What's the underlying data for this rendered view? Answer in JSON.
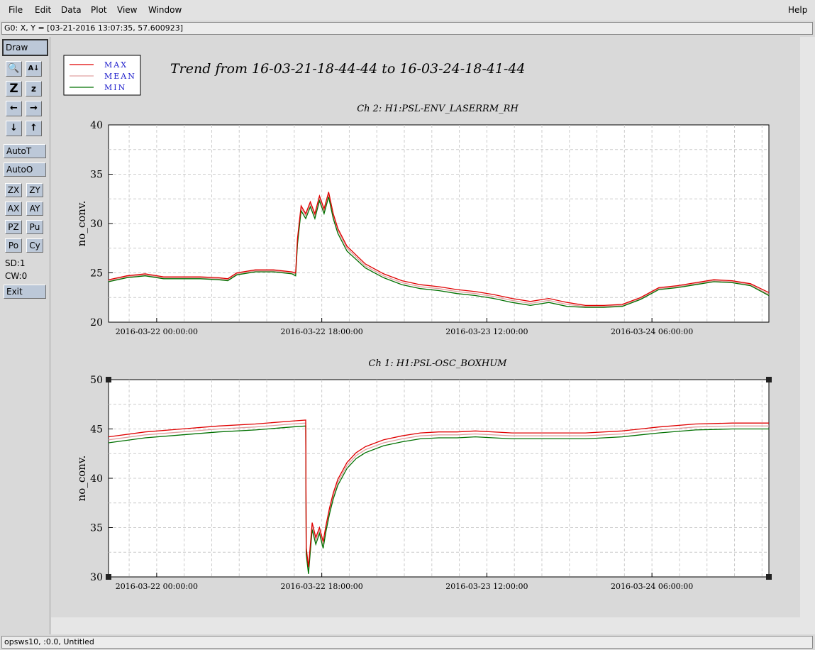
{
  "menu": {
    "items": [
      {
        "label": "File"
      },
      {
        "label": "Edit"
      },
      {
        "label": "Data"
      },
      {
        "label": "Plot"
      },
      {
        "label": "View"
      },
      {
        "label": "Window"
      }
    ],
    "help": "Help"
  },
  "coord_text": "G0: X, Y = [03-21-2016 13:07:35, 57.600923]",
  "toolbox": {
    "draw": "Draw",
    "autot": "AutoT",
    "autoo": "AutoO",
    "small_buttons": [
      "ZX",
      "ZY",
      "AX",
      "AY",
      "PZ",
      "Pu",
      "Po",
      "Cy"
    ],
    "sd": "SD:1",
    "cw": "CW:0",
    "exit": "Exit"
  },
  "status_text": "opsws10, :0.0, Untitled",
  "legend": [
    {
      "label": "MAX",
      "color": "#e00000"
    },
    {
      "label": "MEAN",
      "color": "#e0a0a0"
    },
    {
      "label": "MIN",
      "color": "#007000"
    }
  ],
  "main_title": "Trend from 16-03-21-18-44-44 to 16-03-24-18-41-44",
  "chart_data": [
    {
      "type": "line",
      "title": "Ch 2: H1:PSL-ENV_LASERRM_RH",
      "ylabel": "no_conv.",
      "xlabel": "",
      "x_tick_labels": [
        "2016-03-22 00:00:00",
        "2016-03-22 18:00:00",
        "2016-03-23 12:00:00",
        "2016-03-24 06:00:00"
      ],
      "x_ticks_hours": [
        5.25,
        23.25,
        41.25,
        59.25
      ],
      "xlim_hours": [
        0,
        72
      ],
      "ylim": [
        20,
        40
      ],
      "yticks": [
        20,
        25,
        30,
        35,
        40
      ],
      "grid": true,
      "x_hours": [
        0,
        2,
        4,
        6,
        8,
        10,
        12,
        13,
        14,
        16,
        18,
        20,
        20.4,
        20.6,
        21,
        21.5,
        22,
        22.5,
        23,
        23.5,
        24,
        24.5,
        25,
        26,
        28,
        30,
        32,
        34,
        36,
        38,
        40,
        42,
        44,
        46,
        48,
        50,
        52,
        54,
        56,
        58,
        60,
        62,
        64,
        66,
        68,
        70,
        72
      ],
      "series": [
        {
          "name": "MAX",
          "values": [
            24.3,
            24.7,
            24.9,
            24.6,
            24.6,
            24.6,
            24.5,
            24.4,
            25.0,
            25.3,
            25.3,
            25.1,
            25.0,
            28.5,
            31.8,
            31.0,
            32.2,
            31.0,
            32.8,
            31.5,
            33.2,
            31.0,
            29.5,
            27.7,
            25.9,
            24.9,
            24.2,
            23.8,
            23.6,
            23.3,
            23.1,
            22.8,
            22.4,
            22.1,
            22.4,
            22.0,
            21.7,
            21.7,
            21.8,
            22.5,
            23.5,
            23.7,
            24.0,
            24.3,
            24.2,
            23.9,
            23.0
          ]
        },
        {
          "name": "MEAN",
          "values": [
            24.2,
            24.6,
            24.8,
            24.5,
            24.5,
            24.5,
            24.4,
            24.3,
            24.9,
            25.2,
            25.2,
            25.0,
            24.9,
            28.2,
            31.6,
            30.8,
            32.0,
            30.8,
            32.6,
            31.3,
            33.0,
            30.8,
            29.3,
            27.5,
            25.7,
            24.7,
            24.0,
            23.6,
            23.4,
            23.1,
            22.9,
            22.6,
            22.2,
            21.9,
            22.2,
            21.8,
            21.6,
            21.6,
            21.7,
            22.4,
            23.4,
            23.6,
            23.9,
            24.2,
            24.1,
            23.8,
            22.8
          ]
        },
        {
          "name": "MIN",
          "values": [
            24.1,
            24.5,
            24.7,
            24.4,
            24.4,
            24.4,
            24.3,
            24.2,
            24.8,
            25.1,
            25.1,
            24.9,
            24.7,
            27.9,
            31.3,
            30.5,
            31.7,
            30.5,
            32.3,
            31.0,
            32.7,
            30.5,
            29.0,
            27.2,
            25.5,
            24.5,
            23.8,
            23.4,
            23.2,
            22.9,
            22.7,
            22.4,
            22.0,
            21.7,
            22.0,
            21.6,
            21.5,
            21.5,
            21.6,
            22.3,
            23.3,
            23.5,
            23.8,
            24.1,
            24.0,
            23.7,
            22.7
          ]
        }
      ]
    },
    {
      "type": "line",
      "title": "Ch 1: H1:PSL-OSC_BOXHUM",
      "ylabel": "no_conv.",
      "xlabel": "",
      "x_tick_labels": [
        "2016-03-22 00:00:00",
        "2016-03-22 18:00:00",
        "2016-03-23 12:00:00",
        "2016-03-24 06:00:00"
      ],
      "x_ticks_hours": [
        5.25,
        23.25,
        41.25,
        59.25
      ],
      "xlim_hours": [
        0,
        72
      ],
      "ylim": [
        30,
        50
      ],
      "yticks": [
        30,
        35,
        40,
        45,
        50
      ],
      "grid": true,
      "x_hours": [
        0,
        4,
        8,
        12,
        16,
        20,
        21.5,
        21.55,
        21.8,
        22.2,
        22.6,
        23,
        23.4,
        23.7,
        24.1,
        24.5,
        25,
        26,
        27,
        28,
        30,
        32,
        34,
        36,
        38,
        40,
        44,
        48,
        52,
        56,
        58,
        60,
        64,
        68,
        72
      ],
      "series": [
        {
          "name": "MAX",
          "values": [
            44.2,
            44.7,
            45.0,
            45.3,
            45.5,
            45.8,
            45.9,
            33.0,
            31.0,
            35.5,
            34.0,
            35.0,
            33.6,
            35.2,
            37.0,
            38.5,
            39.9,
            41.6,
            42.6,
            43.2,
            43.9,
            44.3,
            44.6,
            44.7,
            44.7,
            44.8,
            44.6,
            44.6,
            44.6,
            44.8,
            45.0,
            45.2,
            45.5,
            45.6,
            45.6
          ]
        },
        {
          "name": "MEAN",
          "values": [
            43.9,
            44.4,
            44.7,
            45.0,
            45.2,
            45.5,
            45.6,
            32.7,
            30.7,
            35.2,
            33.7,
            34.7,
            33.3,
            34.9,
            36.7,
            38.2,
            39.6,
            41.3,
            42.3,
            42.9,
            43.6,
            44.0,
            44.3,
            44.4,
            44.4,
            44.5,
            44.3,
            44.3,
            44.3,
            44.5,
            44.7,
            44.9,
            45.2,
            45.3,
            45.3
          ]
        },
        {
          "name": "MIN",
          "values": [
            43.6,
            44.1,
            44.4,
            44.7,
            44.9,
            45.2,
            45.3,
            32.3,
            30.3,
            34.8,
            33.3,
            34.4,
            32.9,
            34.6,
            36.4,
            37.9,
            39.3,
            41.0,
            42.0,
            42.6,
            43.3,
            43.7,
            44.0,
            44.1,
            44.1,
            44.2,
            44.0,
            44.0,
            44.0,
            44.2,
            44.4,
            44.6,
            44.9,
            45.0,
            45.0
          ]
        }
      ]
    }
  ]
}
